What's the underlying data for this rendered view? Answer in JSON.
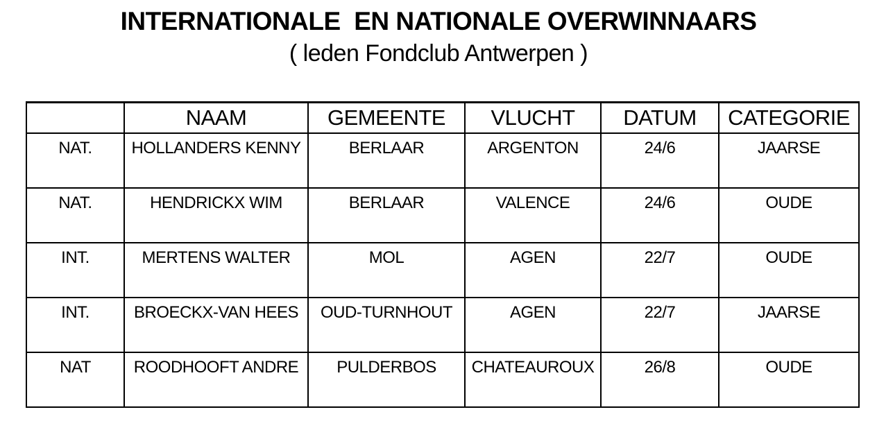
{
  "title": "INTERNATIONALE  EN NATIONALE OVERWINNAARS",
  "subtitle": "( leden Fondclub Antwerpen )",
  "colors": {
    "text": "#000000",
    "border": "#000000",
    "background": "#ffffff"
  },
  "table": {
    "headers": [
      "",
      "NAAM",
      "GEMEENTE",
      "VLUCHT",
      "DATUM",
      "CATEGORIE"
    ],
    "rows": [
      {
        "type": "NAT.",
        "naam": "HOLLANDERS KENNY",
        "gemeente": "BERLAAR",
        "vlucht": "ARGENTON",
        "datum": "24/6",
        "categorie": "JAARSE"
      },
      {
        "type": "NAT.",
        "naam": "HENDRICKX WIM",
        "gemeente": "BERLAAR",
        "vlucht": "VALENCE",
        "datum": "24/6",
        "categorie": "OUDE"
      },
      {
        "type": "INT.",
        "naam": "MERTENS WALTER",
        "gemeente": "MOL",
        "vlucht": "AGEN",
        "datum": "22/7",
        "categorie": "OUDE"
      },
      {
        "type": "INT.",
        "naam": "BROECKX-VAN HEES",
        "gemeente": "OUD-TURNHOUT",
        "vlucht": "AGEN",
        "datum": "22/7",
        "categorie": "JAARSE"
      },
      {
        "type": "NAT",
        "naam": "ROODHOOFT ANDRE",
        "gemeente": "PULDERBOS",
        "vlucht": "CHATEAUROUX",
        "datum": "26/8",
        "categorie": "OUDE"
      }
    ]
  }
}
